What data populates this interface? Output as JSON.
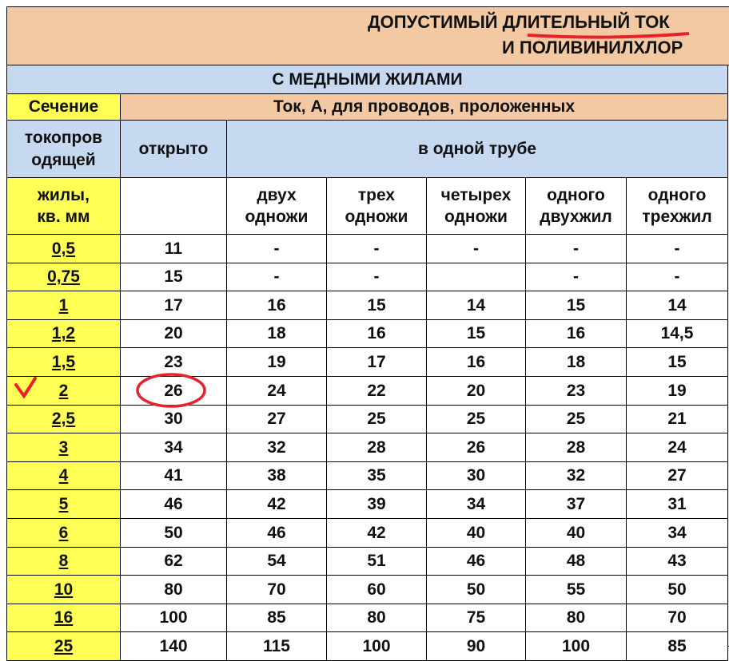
{
  "title": {
    "line1": "ДОПУСТИМЫЙ ДЛИТЕЛЬНЫЙ ТОК",
    "line2": "И ПОЛИВИНИЛХЛОР"
  },
  "section": "С МЕДНЫМИ ЖИЛАМИ",
  "header": {
    "col1": [
      "Сечение",
      "токопров\nодящей",
      "жилы,\nкв. мм"
    ],
    "current": "Ток, А, для проводов, проложенных",
    "open": "открыто",
    "pipe": "в одной трубе",
    "pipe_columns": [
      "двух\nодножи",
      "трех\nодножи",
      "четырех\nодножи",
      "одного\nдвухжил",
      "одного\nтрехжил"
    ]
  },
  "rows": [
    [
      "0,5",
      "11",
      "-",
      "-",
      "-",
      "-",
      "-"
    ],
    [
      "0,75",
      "15",
      "-",
      "-",
      "",
      "-",
      "-"
    ],
    [
      "1",
      "17",
      "16",
      "15",
      "14",
      "15",
      "14"
    ],
    [
      "1,2",
      "20",
      "18",
      "16",
      "15",
      "16",
      "14,5"
    ],
    [
      "1,5",
      "23",
      "19",
      "17",
      "16",
      "18",
      "15"
    ],
    [
      "2",
      "26",
      "24",
      "22",
      "20",
      "23",
      "19"
    ],
    [
      "2,5",
      "30",
      "27",
      "25",
      "25",
      "25",
      "21"
    ],
    [
      "3",
      "34",
      "32",
      "28",
      "26",
      "28",
      "24"
    ],
    [
      "4",
      "41",
      "38",
      "35",
      "30",
      "32",
      "27"
    ],
    [
      "5",
      "46",
      "42",
      "39",
      "34",
      "37",
      "31"
    ],
    [
      "6",
      "50",
      "46",
      "42",
      "40",
      "40",
      "34"
    ],
    [
      "8",
      "62",
      "54",
      "51",
      "46",
      "48",
      "43"
    ],
    [
      "10",
      "80",
      "70",
      "60",
      "50",
      "55",
      "50"
    ],
    [
      "16",
      "100",
      "85",
      "80",
      "75",
      "80",
      "70"
    ],
    [
      "25",
      "140",
      "115",
      "100",
      "90",
      "100",
      "85"
    ]
  ]
}
